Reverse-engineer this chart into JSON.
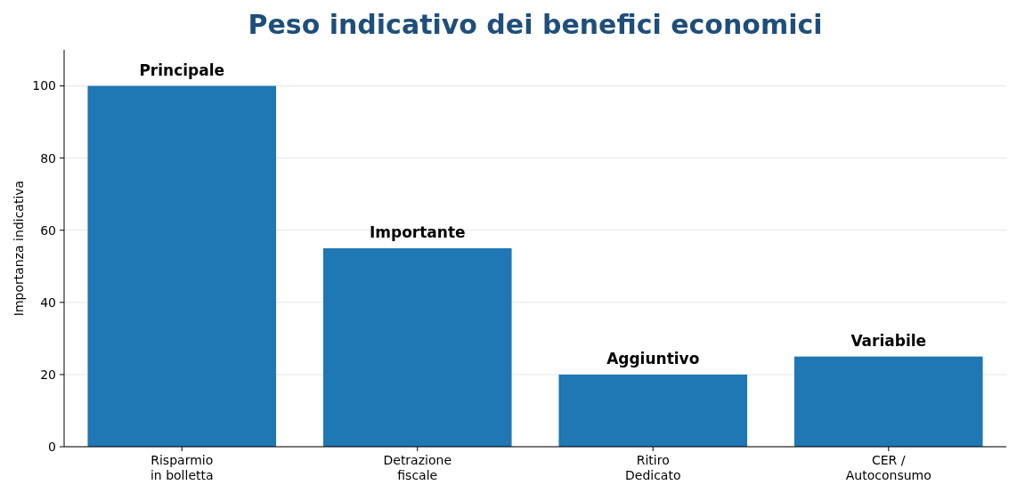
{
  "chart_data": {
    "type": "bar",
    "title": "Peso indicativo dei benefici economici",
    "ylabel": "Importanza indicativa",
    "categories": [
      "Risparmio\nin bolletta",
      "Detrazione\nfiscale",
      "Ritiro\nDedicato",
      "CER /\nAutoconsumo"
    ],
    "values": [
      100,
      55,
      20,
      25
    ],
    "color": "#1f77b4",
    "value_labels": [
      "Principale",
      "Importante",
      "Aggiuntivo",
      "Variabile"
    ],
    "ylim": [
      0,
      110
    ],
    "yticks": [
      0,
      20,
      40,
      60,
      80,
      100
    ],
    "grid": "y"
  }
}
